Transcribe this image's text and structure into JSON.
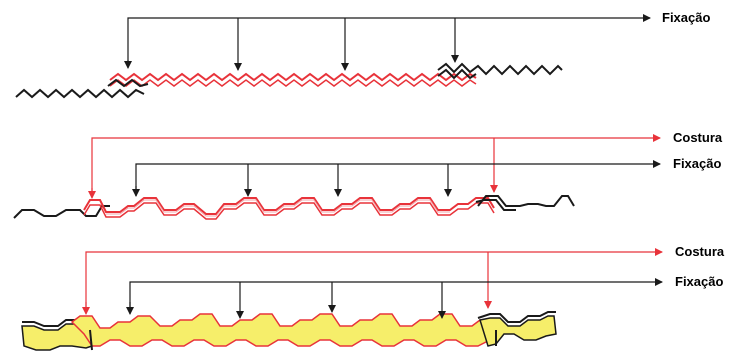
{
  "labels": {
    "fixacao": "Fixação",
    "costura": "Costura"
  },
  "colors": {
    "black": "#1a1a1a",
    "red": "#e8333a",
    "pink": "#f3a3a8",
    "yellow": "#f6ee6a",
    "gray": "#9a9a9a"
  },
  "diagrams": [
    {
      "id": "top",
      "arrows": [
        "fixacao"
      ]
    },
    {
      "id": "middle",
      "arrows": [
        "costura",
        "fixacao"
      ]
    },
    {
      "id": "bottom",
      "arrows": [
        "costura",
        "fixacao"
      ]
    }
  ]
}
